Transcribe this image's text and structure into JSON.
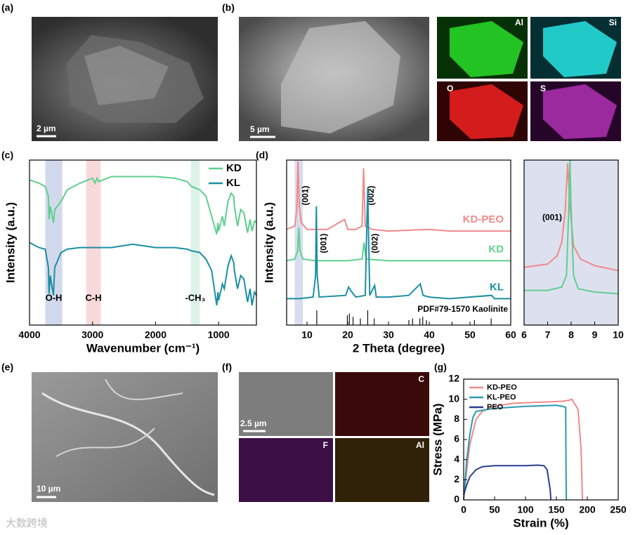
{
  "panel_labels": [
    "(a)",
    "(b)",
    "(c)",
    "(d)",
    "(e)",
    "(f)",
    "(g)"
  ],
  "images": {
    "a_scale": "2 µm",
    "b_scale": "5 µm",
    "b_maps": [
      "Al",
      "Si",
      "O",
      "S"
    ],
    "e_scale": "10 µm",
    "f_scale": "2.5 µm",
    "f_maps": [
      "C",
      "F",
      "Al"
    ]
  },
  "watermark": "大数跨境",
  "chart_data": [
    {
      "type": "line",
      "xlabel": "Wavenumber (cm⁻¹)",
      "ylabel": "Intensity (a.u.)",
      "xlim": [
        4000,
        400
      ],
      "xticks": [
        4000,
        3000,
        2000,
        1000
      ],
      "ylim": [
        0,
        100
      ],
      "legend": "upper right",
      "bands": [
        {
          "label": "O-H",
          "range": [
            3750,
            3480
          ],
          "color": "#c3cce6"
        },
        {
          "label": "C-H",
          "range": [
            3100,
            2870
          ],
          "color": "#f6cccc"
        },
        {
          "label": "-CH₃",
          "range": [
            1440,
            1300
          ],
          "color": "#cfeedd"
        }
      ],
      "x": [
        4000,
        3850,
        3750,
        3700,
        3690,
        3670,
        3650,
        3620,
        3600,
        3500,
        3400,
        3200,
        3000,
        2960,
        2930,
        2900,
        2700,
        2360,
        2000,
        1700,
        1500,
        1430,
        1300,
        1200,
        1110,
        1030,
        1010,
        1000,
        940,
        910,
        850,
        800,
        760,
        750,
        700,
        650,
        600,
        540,
        500,
        470,
        430,
        400
      ],
      "series": [
        {
          "name": "KD",
          "color": "#5fcf8f",
          "values": [
            88,
            86,
            84,
            78,
            64,
            72,
            68,
            62,
            70,
            75,
            82,
            86,
            89,
            86,
            89,
            87,
            90,
            90,
            90,
            89,
            87,
            84,
            82,
            78,
            66,
            55,
            62,
            57,
            66,
            60,
            75,
            80,
            78,
            72,
            60,
            70,
            68,
            56,
            64,
            57,
            63,
            62
          ]
        },
        {
          "name": "KL",
          "color": "#1b8fa3",
          "values": [
            50,
            47,
            46,
            35,
            19,
            30,
            25,
            18,
            35,
            44,
            46,
            47,
            47,
            47,
            47,
            47,
            47,
            49,
            47,
            47,
            46,
            45,
            44,
            40,
            33,
            12,
            20,
            15,
            25,
            22,
            36,
            42,
            38,
            33,
            22,
            30,
            28,
            14,
            22,
            12,
            20,
            18
          ]
        }
      ]
    },
    {
      "type": "line",
      "xlabel": "2 Theta (degree)",
      "ylabel": "Intensity (a.u.)",
      "xlim": [
        5,
        60
      ],
      "xticks": [
        10,
        20,
        30,
        40,
        50,
        60
      ],
      "ylim": [
        0,
        100
      ],
      "legend": "inline",
      "bands": [
        {
          "range": [
            7,
            9
          ],
          "color": "#c9d0e8"
        }
      ],
      "series": [
        {
          "name": "KD-PEO",
          "color": "#f08a8a",
          "x": [
            5,
            7,
            7.5,
            7.8,
            8.1,
            8.6,
            10,
            12.4,
            15,
            19.2,
            20,
            22,
            23.5,
            23.9,
            24.3,
            26,
            30,
            40,
            45,
            50,
            60
          ],
          "values": [
            58,
            60,
            70,
            99,
            72,
            62,
            58,
            58,
            58,
            64,
            58,
            58,
            60,
            95,
            60,
            58,
            57,
            58,
            57,
            57,
            57
          ],
          "peak_labels": [
            {
              "label": "(001)",
              "x": 7.8
            },
            {
              "label": "(002)",
              "x": 23.9
            }
          ]
        },
        {
          "name": "KD",
          "color": "#5fcf8f",
          "x": [
            5,
            7,
            7.7,
            8,
            8.3,
            9,
            12,
            20,
            23.5,
            24,
            24.5,
            30,
            40,
            60
          ],
          "values": [
            39,
            40,
            45,
            59,
            45,
            40,
            39,
            39,
            40,
            50,
            40,
            39,
            39,
            39
          ]
        },
        {
          "name": "KL",
          "color": "#1b8fa3",
          "x": [
            5,
            8,
            11.5,
            12.1,
            12.3,
            12.5,
            13,
            19.5,
            20.2,
            21,
            22,
            24.3,
            24.9,
            25.4,
            26.6,
            27,
            30,
            35,
            37.8,
            38.5,
            40,
            45,
            55.3,
            56,
            60
          ],
          "values": [
            16,
            16,
            17,
            30,
            72,
            30,
            17,
            18,
            23,
            20,
            17,
            18,
            83,
            18,
            24,
            17,
            17,
            18,
            25,
            18,
            17,
            16,
            18,
            16,
            16
          ],
          "peak_labels": [
            {
              "label": "(001)",
              "x": 12.3
            },
            {
              "label": "(002)",
              "x": 24.9
            }
          ]
        }
      ],
      "sticks": {
        "name": "PDF#79-1570 Kaolinite",
        "color": "#111111",
        "x": [
          12.4,
          19.9,
          20.4,
          21.3,
          23.1,
          24.9,
          26.5,
          35.0,
          35.9,
          37.7,
          38.4,
          39.3,
          45.6,
          51.1,
          55.2
        ],
        "values": [
          9,
          6,
          7,
          5,
          4,
          9,
          4,
          3,
          4,
          4,
          5,
          3,
          2,
          3,
          4
        ]
      }
    },
    {
      "type": "line",
      "xlim": [
        6,
        10
      ],
      "xticks": [
        6,
        7,
        8,
        9,
        10
      ],
      "ylim": [
        0,
        100
      ],
      "background": "#dde1ef",
      "series": [
        {
          "color": "#f08a8a",
          "x": [
            6,
            7,
            7.4,
            7.6,
            7.75,
            7.85,
            7.95,
            8.1,
            8.4,
            9,
            10
          ],
          "values": [
            35,
            37,
            42,
            50,
            70,
            98,
            72,
            48,
            40,
            36,
            33
          ],
          "peak_labels": [
            {
              "label": "(001)",
              "x": 7.85
            }
          ]
        },
        {
          "color": "#5fcf8f",
          "x": [
            6,
            7,
            7.6,
            7.8,
            7.9,
            7.95,
            8.0,
            8.1,
            8.3,
            9,
            10
          ],
          "values": [
            21,
            21,
            23,
            30,
            70,
            100,
            70,
            30,
            22,
            20,
            19
          ]
        }
      ]
    },
    {
      "type": "line",
      "xlabel": "Strain (%)",
      "ylabel": "Stress (MPa)",
      "xlim": [
        0,
        250
      ],
      "xticks": [
        0,
        50,
        100,
        150,
        200,
        250
      ],
      "ylim": [
        0,
        12
      ],
      "yticks": [
        0,
        2,
        4,
        6,
        8,
        10,
        12
      ],
      "legend": "upper left",
      "series": [
        {
          "name": "KD-PEO",
          "color": "#f08a8a",
          "x": [
            0,
            5,
            10,
            20,
            30,
            50,
            80,
            120,
            160,
            170,
            175,
            180,
            185,
            190,
            192
          ],
          "values": [
            0,
            3,
            5.5,
            8,
            8.8,
            9.3,
            9.6,
            9.7,
            9.8,
            9.9,
            10,
            9.5,
            9,
            5,
            0
          ]
        },
        {
          "name": "KL-PEO",
          "color": "#2a9bb0",
          "x": [
            0,
            5,
            10,
            15,
            20,
            30,
            50,
            100,
            150,
            160,
            165,
            165.5,
            166
          ],
          "values": [
            0,
            4,
            6.5,
            8.2,
            8.8,
            8.9,
            9.1,
            9.3,
            9.4,
            9.3,
            9.2,
            4,
            0
          ]
        },
        {
          "name": "PEO",
          "color": "#2c3f8f",
          "x": [
            0,
            5,
            10,
            20,
            30,
            50,
            100,
            120,
            130,
            135,
            140,
            141
          ],
          "values": [
            0.5,
            1.5,
            2.3,
            3,
            3.3,
            3.4,
            3.4,
            3.45,
            3.4,
            3,
            1,
            0
          ]
        }
      ]
    }
  ]
}
